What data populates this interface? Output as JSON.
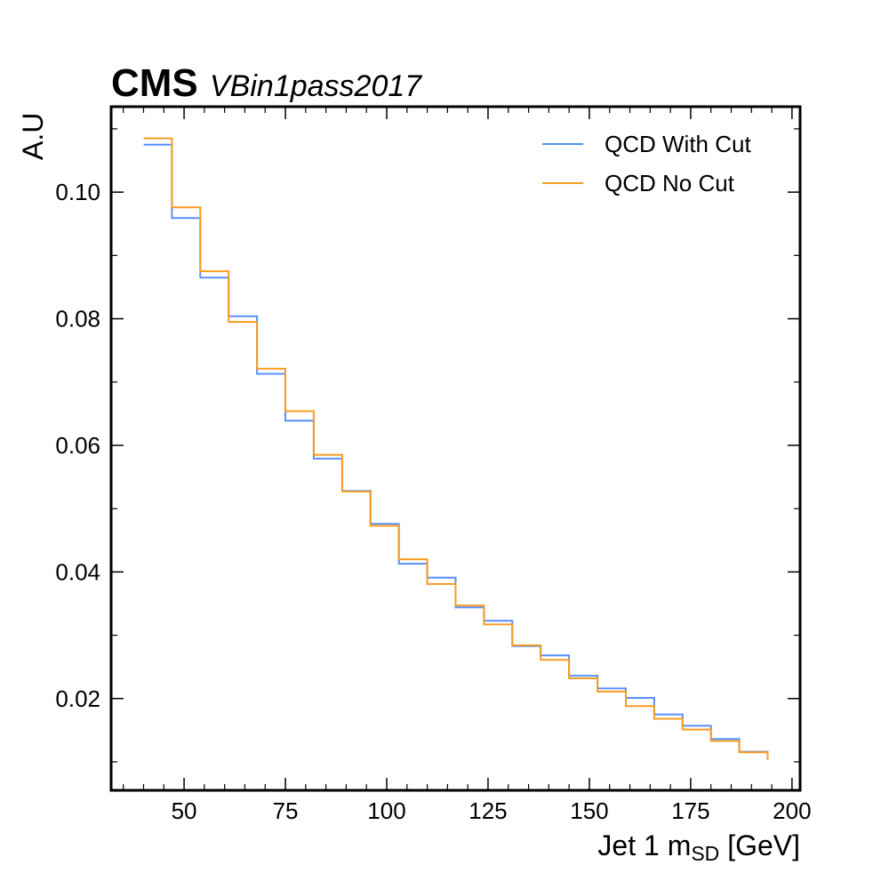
{
  "chart_data": {
    "type": "step",
    "experiment_label": "CMS",
    "sub_label": "VBin1pass2017",
    "ylabel": "A.U",
    "xlabel_main": "Jet 1 m",
    "xlabel_sub": "SD",
    "xlabel_unit": " [GeV]",
    "xlim": [
      32,
      202
    ],
    "ylim": [
      0.0055,
      0.1135
    ],
    "xticks": [
      50,
      75,
      100,
      125,
      150,
      175,
      200
    ],
    "yticks": [
      0.02,
      0.04,
      0.06,
      0.08,
      0.1
    ],
    "ytick_labels": [
      "0.02",
      "0.04",
      "0.06",
      "0.08",
      "0.10"
    ],
    "bin_edges": [
      40,
      47,
      54,
      61,
      68,
      75,
      82,
      89,
      96,
      103,
      110,
      117,
      124,
      131,
      138,
      145,
      152,
      159,
      166,
      173,
      180,
      187,
      194
    ],
    "legend_position": "top-right",
    "series": [
      {
        "name": "QCD With Cut",
        "color": "#5790fc",
        "values": [
          0.1075,
          0.0959,
          0.0865,
          0.0804,
          0.0713,
          0.0639,
          0.0579,
          0.0528,
          0.0476,
          0.0413,
          0.0391,
          0.0344,
          0.0323,
          0.0283,
          0.0268,
          0.0236,
          0.0216,
          0.0201,
          0.0175,
          0.0157,
          0.0136,
          0.0116
        ]
      },
      {
        "name": "QCD No Cut",
        "color": "#f89c20",
        "values": [
          0.1085,
          0.0976,
          0.0875,
          0.0795,
          0.0721,
          0.0654,
          0.0585,
          0.0527,
          0.0473,
          0.042,
          0.0381,
          0.0347,
          0.0317,
          0.0284,
          0.0261,
          0.0232,
          0.0211,
          0.0188,
          0.0168,
          0.0151,
          0.0133,
          0.0115
        ]
      }
    ]
  }
}
